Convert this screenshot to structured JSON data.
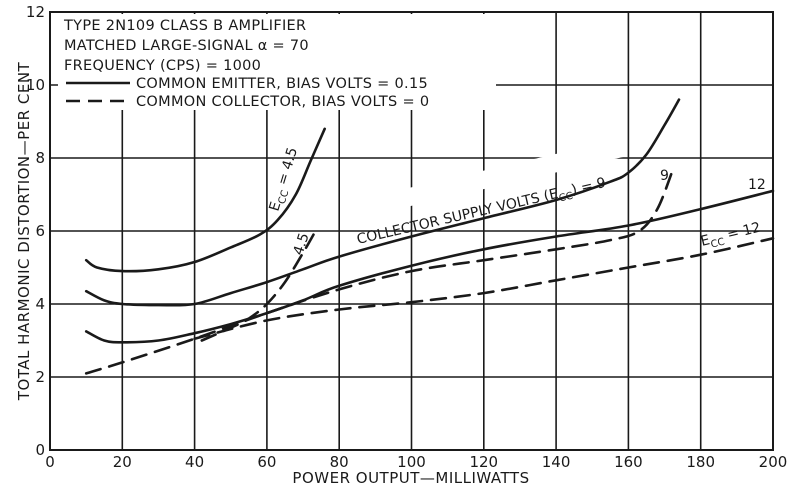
{
  "chart_data": {
    "type": "line",
    "title_lines": [
      "TYPE 2N109 CLASS B AMPLIFIER",
      "MATCHED LARGE-SIGNAL α = 70",
      "FREQUENCY (CPS) = 1000"
    ],
    "xlabel": "POWER OUTPUT—MILLIWATTS",
    "ylabel": "TOTAL HARMONIC DISTORTION—PER CENT",
    "xlim": [
      0,
      200
    ],
    "ylim": [
      0,
      12
    ],
    "x_ticks": [
      "0",
      "20",
      "40",
      "60",
      "80",
      "100",
      "120",
      "140",
      "160",
      "180",
      "200"
    ],
    "y_ticks": [
      "0",
      "2",
      "4",
      "6",
      "8",
      "10",
      "12"
    ],
    "grid": true,
    "legend_position": "top-left",
    "legend": [
      {
        "style": "solid",
        "label": "COMMON EMITTER, BIAS VOLTS = 0.15"
      },
      {
        "style": "dashed",
        "label": "COMMON COLLECTOR, BIAS VOLTS = 0"
      }
    ],
    "series": [
      {
        "label": "E_CC = 4.5",
        "style": "solid",
        "points": [
          [
            10,
            5.2
          ],
          [
            13,
            5.0
          ],
          [
            20,
            4.9
          ],
          [
            30,
            4.95
          ],
          [
            40,
            5.15
          ],
          [
            50,
            5.55
          ],
          [
            58,
            5.9
          ],
          [
            63,
            6.3
          ],
          [
            68,
            7.0
          ],
          [
            72,
            7.9
          ],
          [
            76,
            8.8
          ]
        ]
      },
      {
        "label": "9",
        "style": "solid",
        "points": [
          [
            10,
            4.35
          ],
          [
            15,
            4.1
          ],
          [
            20,
            4.0
          ],
          [
            30,
            3.97
          ],
          [
            40,
            4.0
          ],
          [
            50,
            4.3
          ],
          [
            60,
            4.6
          ],
          [
            70,
            4.95
          ],
          [
            80,
            5.3
          ],
          [
            100,
            5.85
          ],
          [
            120,
            6.35
          ],
          [
            140,
            6.85
          ],
          [
            155,
            7.35
          ],
          [
            160,
            7.6
          ],
          [
            165,
            8.1
          ],
          [
            170,
            8.9
          ],
          [
            174,
            9.6
          ]
        ]
      },
      {
        "label": "12",
        "style": "solid",
        "points": [
          [
            10,
            3.25
          ],
          [
            15,
            3.0
          ],
          [
            20,
            2.95
          ],
          [
            30,
            3.0
          ],
          [
            40,
            3.2
          ],
          [
            50,
            3.45
          ],
          [
            60,
            3.75
          ],
          [
            70,
            4.1
          ],
          [
            80,
            4.5
          ],
          [
            100,
            5.05
          ],
          [
            120,
            5.5
          ],
          [
            140,
            5.85
          ],
          [
            160,
            6.15
          ],
          [
            180,
            6.6
          ],
          [
            200,
            7.1
          ]
        ]
      },
      {
        "label": "4.5",
        "style": "dashed",
        "points": [
          [
            42,
            3.0
          ],
          [
            50,
            3.35
          ],
          [
            55,
            3.6
          ],
          [
            60,
            4.0
          ],
          [
            65,
            4.6
          ],
          [
            70,
            5.4
          ],
          [
            74,
            6.1
          ]
        ]
      },
      {
        "label": "9",
        "style": "dashed",
        "points": [
          [
            10,
            2.1
          ],
          [
            20,
            2.4
          ],
          [
            40,
            3.05
          ],
          [
            60,
            3.75
          ],
          [
            80,
            4.4
          ],
          [
            100,
            4.9
          ],
          [
            120,
            5.2
          ],
          [
            140,
            5.5
          ],
          [
            155,
            5.75
          ],
          [
            163,
            6.0
          ],
          [
            168,
            6.6
          ],
          [
            172,
            7.6
          ]
        ]
      },
      {
        "label": "E_CC = 12",
        "style": "dashed",
        "points": [
          [
            40,
            3.05
          ],
          [
            60,
            3.55
          ],
          [
            80,
            3.85
          ],
          [
            100,
            4.05
          ],
          [
            120,
            4.3
          ],
          [
            140,
            4.65
          ],
          [
            160,
            5.0
          ],
          [
            180,
            5.35
          ],
          [
            200,
            5.8
          ]
        ]
      }
    ],
    "annotations": [
      {
        "text": "COLLECTOR SUPPLY VOLTS (E",
        "sub": "CC",
        "tail": ") = 9"
      },
      {
        "text": "E",
        "sub": "CC",
        "tail": " = 4.5"
      },
      {
        "text": "4.5"
      },
      {
        "text": "9"
      },
      {
        "text": "12"
      },
      {
        "text": "E",
        "sub": "CC",
        "tail": " = 12"
      }
    ]
  },
  "colors": {
    "ink": "#1a1a1a",
    "background": "#ffffff"
  }
}
